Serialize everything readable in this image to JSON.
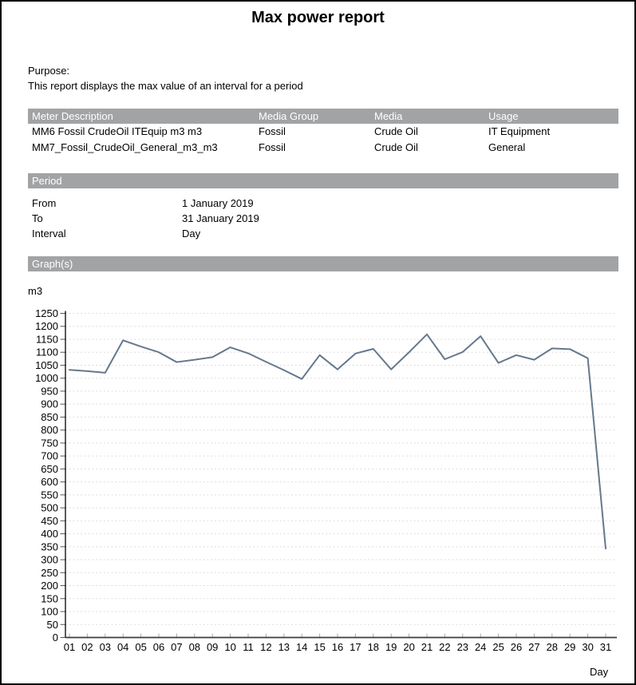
{
  "title": "Max power report",
  "purpose": {
    "label": "Purpose:",
    "text": "This report displays the max value of an interval for a period"
  },
  "meter_table": {
    "headers": [
      "Meter Description",
      "Media Group",
      "Media",
      "Usage"
    ],
    "rows": [
      [
        "MM6 Fossil CrudeOil ITEquip m3 m3",
        "Fossil",
        "Crude Oil",
        "IT Equipment"
      ],
      [
        "MM7_Fossil_CrudeOil_General_m3_m3",
        "Fossil",
        "Crude Oil",
        "General"
      ]
    ]
  },
  "period": {
    "header": "Period",
    "rows": [
      {
        "label": "From",
        "value": "1 January 2019"
      },
      {
        "label": "To",
        "value": "31 January 2019"
      },
      {
        "label": "Interval",
        "value": "Day"
      }
    ]
  },
  "graphs": {
    "header": "Graph(s)"
  },
  "colors": {
    "section_header_bg": "#a1a3a5",
    "section_header_text": "#ffffff",
    "series_line": "#66788c",
    "gridline": "#d6d6d6"
  },
  "chart_data": {
    "type": "line",
    "title": "",
    "ylabel": "m3",
    "xlabel": "Day",
    "categories": [
      "01",
      "02",
      "03",
      "04",
      "05",
      "06",
      "07",
      "08",
      "09",
      "10",
      "11",
      "12",
      "13",
      "14",
      "15",
      "16",
      "17",
      "18",
      "19",
      "20",
      "21",
      "22",
      "23",
      "24",
      "25",
      "26",
      "27",
      "28",
      "29",
      "30",
      "31"
    ],
    "values": [
      1032,
      1027,
      1021,
      1146,
      1122,
      1100,
      1062,
      1071,
      1081,
      1119,
      1096,
      1063,
      1031,
      997,
      1089,
      1034,
      1095,
      1113,
      1034,
      1100,
      1169,
      1073,
      1101,
      1162,
      1059,
      1089,
      1071,
      1115,
      1112,
      1077,
      343
    ],
    "ylim": [
      0,
      1250
    ],
    "ytick_step": 50,
    "grid": "horizontal-dotted",
    "legend": "none",
    "line_color": "#66788c"
  }
}
